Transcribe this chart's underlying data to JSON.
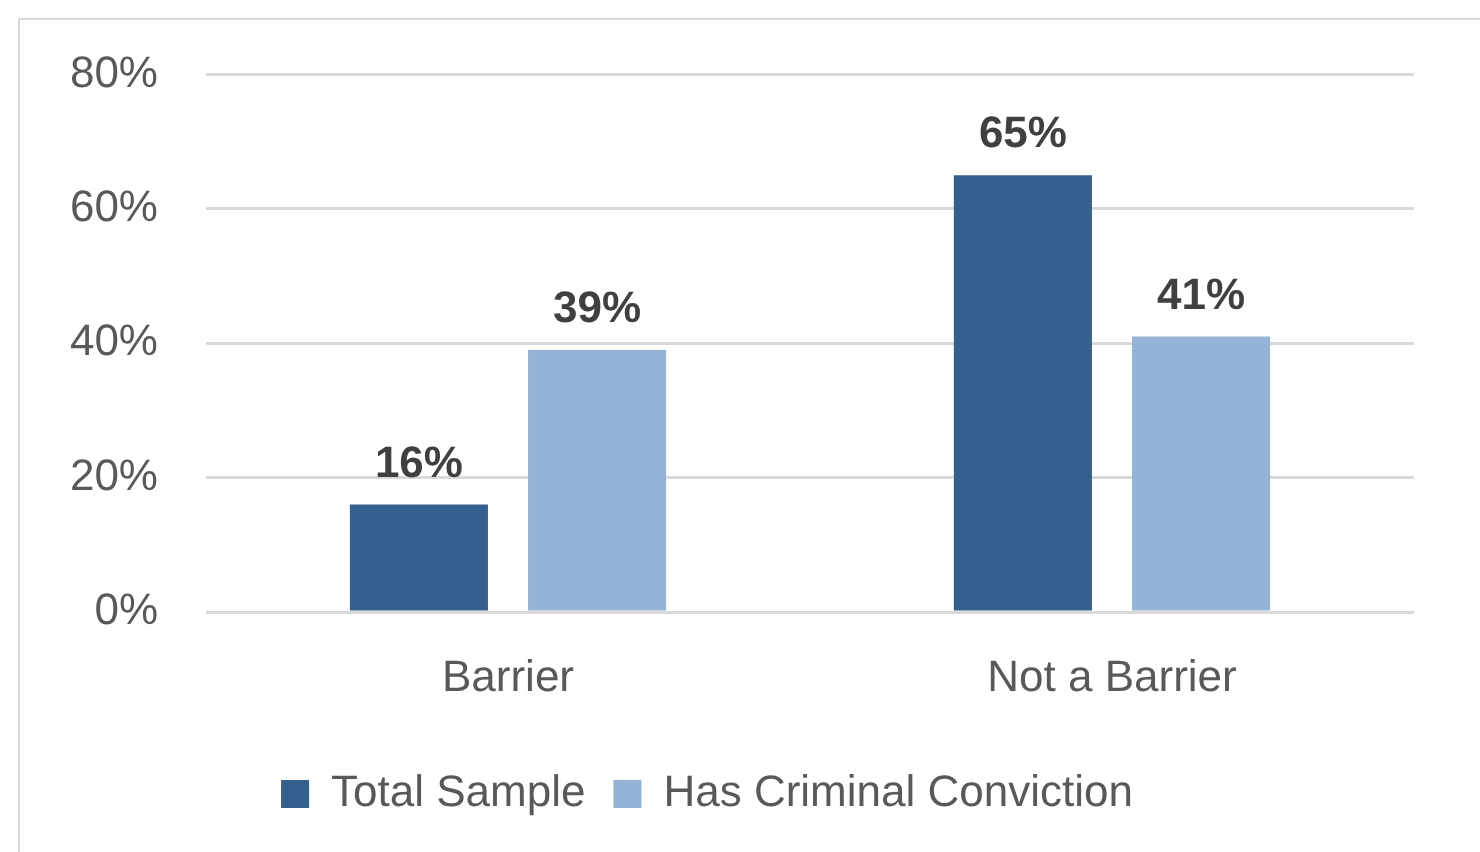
{
  "chart_data": {
    "type": "bar",
    "categories": [
      "Barrier",
      "Not a Barrier"
    ],
    "series": [
      {
        "name": "Total Sample",
        "color": "#355f8d",
        "values": [
          16,
          65
        ],
        "value_labels": [
          "16%",
          "65%"
        ]
      },
      {
        "name": "Has Criminal Conviction",
        "color": "#95b3d7",
        "values": [
          39,
          41
        ],
        "value_labels": [
          "39%",
          "41%"
        ]
      }
    ],
    "ylim": [
      0,
      80
    ],
    "yticks": [
      {
        "value": 0,
        "label": "0%"
      },
      {
        "value": 20,
        "label": "20%"
      },
      {
        "value": 40,
        "label": "40%"
      },
      {
        "value": 60,
        "label": "60%"
      },
      {
        "value": 80,
        "label": "80%"
      }
    ],
    "grid": "y",
    "legend": "bottom"
  }
}
